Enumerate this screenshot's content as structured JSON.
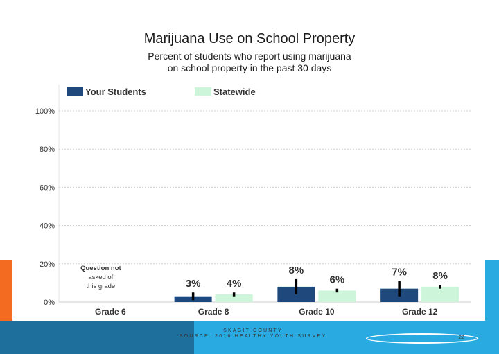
{
  "slide": {
    "title": "Marijuana Use on School Property",
    "subtitle_line1": "Percent of students who report using marijuana",
    "subtitle_line2": "on school property in the past 30 days",
    "footer_line1": "SKAGIT COUNTY",
    "footer_line2": "SOURCE: 2016 HEALTHY YOUTH SURVEY",
    "page_number": "22"
  },
  "colors": {
    "your_students": "#1f497d",
    "statewide": "#ccf5d9",
    "error_bar": "#000000",
    "accent_orange": "#f26b21",
    "accent_blue": "#29abe2"
  },
  "chart_data": {
    "type": "bar",
    "categories": [
      "Grade 6",
      "Grade 8",
      "Grade 10",
      "Grade 12"
    ],
    "series": [
      {
        "name": "Your Students",
        "values": [
          null,
          3,
          8,
          7
        ],
        "labels": [
          "",
          "3%",
          "8%",
          "7%"
        ]
      },
      {
        "name": "Statewide",
        "values": [
          null,
          4,
          6,
          8
        ],
        "labels": [
          "",
          "4%",
          "6%",
          "8%"
        ]
      }
    ],
    "error_bars": {
      "Your Students": [
        null,
        [
          1,
          5
        ],
        [
          4,
          12
        ],
        [
          3,
          11
        ]
      ],
      "Statewide": [
        null,
        [
          3,
          5
        ],
        [
          5,
          7
        ],
        [
          7,
          9
        ]
      ]
    },
    "note_grade6": [
      "Question not",
      "asked of",
      "this grade"
    ],
    "ylim": [
      0,
      100
    ],
    "yticks": [
      0,
      20,
      40,
      60,
      80,
      100
    ],
    "ytick_labels": [
      "0%",
      "20%",
      "40%",
      "60%",
      "80%",
      "100%"
    ],
    "grid": true,
    "legend": "top-left"
  }
}
